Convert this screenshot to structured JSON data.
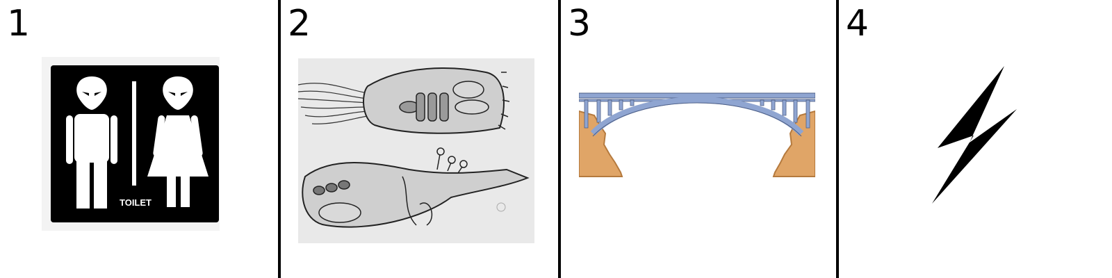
{
  "panels": [
    {
      "number": "1",
      "image_label": "TOILET",
      "icon": "alien-toilet-sign"
    },
    {
      "number": "2",
      "icon": "alien-creature-sketches"
    },
    {
      "number": "3",
      "icon": "arch-bridge"
    },
    {
      "number": "4",
      "icon": "lightning-bolt"
    }
  ],
  "colors": {
    "sign_background": "#000000",
    "sign_foreground": "#ffffff",
    "bridge_steel": "#8fa5d1",
    "cliff_fill": "#e0a567",
    "cliff_edge": "#b57a3e",
    "sketch_gray": "#e6e6e6"
  }
}
